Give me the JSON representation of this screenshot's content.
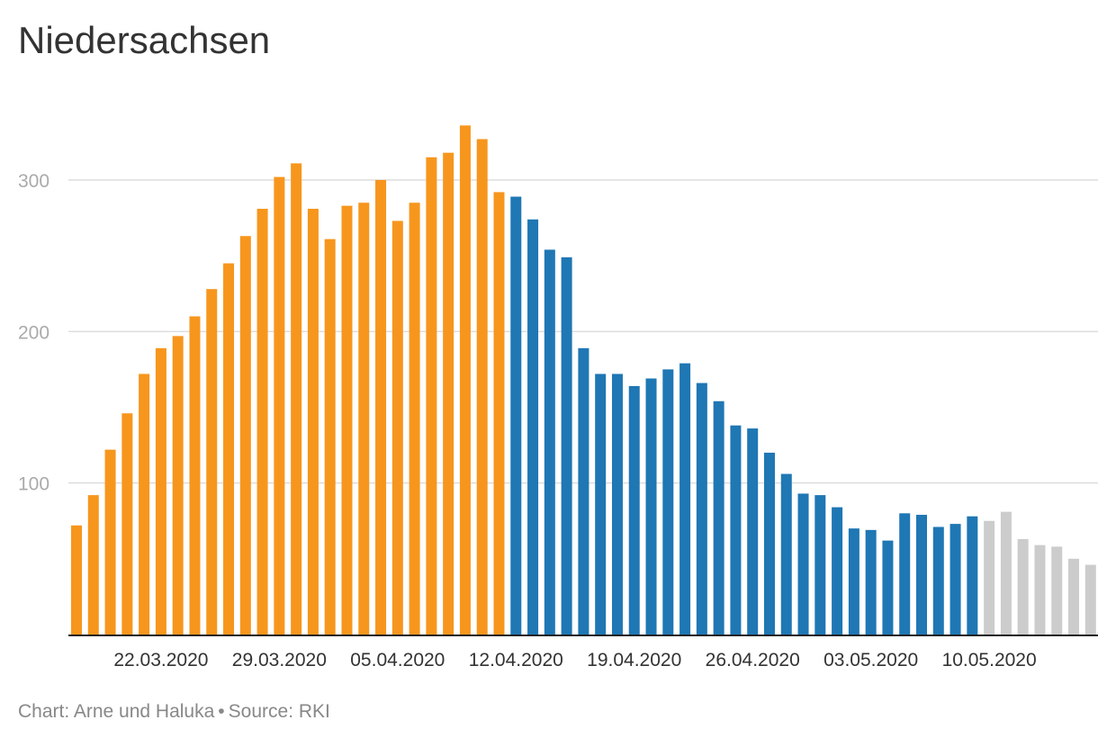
{
  "title": "Niedersachsen",
  "footer": {
    "credit": "Chart: Arne und Haluka",
    "separator": "•",
    "source": "Source: RKI"
  },
  "colors": {
    "orange": "#F7961D",
    "blue": "#1F77B4",
    "gray": "#CCCCCC",
    "grid": "#DDDDDD",
    "axis": "#222222",
    "tick_text": "#AAAAAA",
    "label_text": "#333333"
  },
  "chart_data": {
    "type": "bar",
    "title": "Niedersachsen",
    "xlabel": "",
    "ylabel": "",
    "ylim": [
      0,
      355
    ],
    "yticks": [
      100,
      200,
      300
    ],
    "xtick_labels": [
      "22.03.2020",
      "29.03.2020",
      "05.04.2020",
      "12.04.2020",
      "19.04.2020",
      "26.04.2020",
      "03.05.2020",
      "10.05.2020"
    ],
    "grid": true,
    "legend": "none",
    "categories": [
      "17.03.2020",
      "18.03.2020",
      "19.03.2020",
      "20.03.2020",
      "21.03.2020",
      "22.03.2020",
      "23.03.2020",
      "24.03.2020",
      "25.03.2020",
      "26.03.2020",
      "27.03.2020",
      "28.03.2020",
      "29.03.2020",
      "30.03.2020",
      "31.03.2020",
      "01.04.2020",
      "02.04.2020",
      "03.04.2020",
      "04.04.2020",
      "05.04.2020",
      "06.04.2020",
      "07.04.2020",
      "08.04.2020",
      "09.04.2020",
      "10.04.2020",
      "11.04.2020",
      "12.04.2020",
      "13.04.2020",
      "14.04.2020",
      "15.04.2020",
      "16.04.2020",
      "17.04.2020",
      "18.04.2020",
      "19.04.2020",
      "20.04.2020",
      "21.04.2020",
      "22.04.2020",
      "23.04.2020",
      "24.04.2020",
      "25.04.2020",
      "26.04.2020",
      "27.04.2020",
      "28.04.2020",
      "29.04.2020",
      "30.04.2020",
      "01.05.2020",
      "02.05.2020",
      "03.05.2020",
      "04.05.2020",
      "05.05.2020",
      "06.05.2020",
      "07.05.2020",
      "08.05.2020",
      "09.05.2020",
      "10.05.2020",
      "11.05.2020",
      "12.05.2020",
      "13.05.2020",
      "14.05.2020",
      "15.05.2020",
      "16.05.2020",
      "17.05.2020"
    ],
    "values": [
      72,
      92,
      122,
      146,
      172,
      189,
      197,
      210,
      228,
      245,
      263,
      281,
      302,
      311,
      281,
      261,
      283,
      285,
      300,
      273,
      285,
      315,
      318,
      336,
      327,
      292,
      289,
      274,
      254,
      249,
      189,
      172,
      172,
      164,
      169,
      175,
      179,
      166,
      154,
      138,
      136,
      120,
      106,
      93,
      92,
      84,
      70,
      69,
      62,
      80,
      79,
      71,
      73,
      78,
      75,
      81,
      63,
      59,
      58,
      50,
      46,
      null
    ],
    "segment_colors": [
      "orange",
      "orange",
      "orange",
      "orange",
      "orange",
      "orange",
      "orange",
      "orange",
      "orange",
      "orange",
      "orange",
      "orange",
      "orange",
      "orange",
      "orange",
      "orange",
      "orange",
      "orange",
      "orange",
      "orange",
      "orange",
      "orange",
      "orange",
      "orange",
      "orange",
      "orange",
      "blue",
      "blue",
      "blue",
      "blue",
      "blue",
      "blue",
      "blue",
      "blue",
      "blue",
      "blue",
      "blue",
      "blue",
      "blue",
      "blue",
      "blue",
      "blue",
      "blue",
      "blue",
      "blue",
      "blue",
      "blue",
      "blue",
      "blue",
      "blue",
      "blue",
      "blue",
      "blue",
      "blue",
      "gray",
      "gray",
      "gray",
      "gray",
      "gray",
      "gray",
      "gray",
      "gray"
    ]
  }
}
